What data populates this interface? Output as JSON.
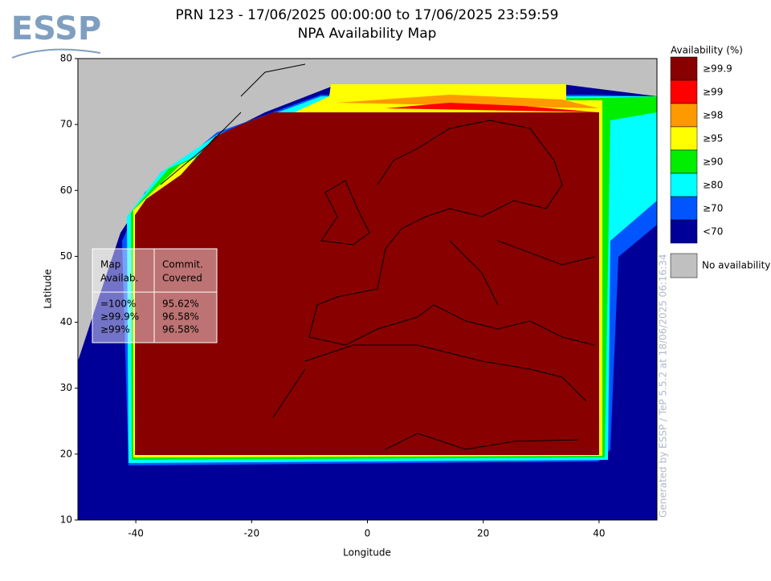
{
  "header": {
    "logo": "ESSP",
    "title": "PRN 123 - 17/06/2025 00:00:00 to 17/06/2025 23:59:59",
    "subtitle": "NPA Availability Map"
  },
  "chart_data": {
    "type": "map",
    "xlabel": "Longitude",
    "ylabel": "Latitude",
    "xlim": [
      -50,
      50
    ],
    "ylim": [
      10,
      80
    ],
    "xticks": [
      -40,
      -20,
      0,
      20,
      40
    ],
    "yticks": [
      10,
      20,
      30,
      40,
      50,
      60,
      70,
      80
    ],
    "legend": {
      "title": "Availability (%)",
      "entries": [
        {
          "label": "≥99.9",
          "color": "#880000"
        },
        {
          "label": "≥99",
          "color": "#ff0000"
        },
        {
          "label": "≥98",
          "color": "#ff9900"
        },
        {
          "label": "≥95",
          "color": "#ffff00"
        },
        {
          "label": "≥90",
          "color": "#00ee00"
        },
        {
          "label": "≥80",
          "color": "#00ffff"
        },
        {
          "label": "≥70",
          "color": "#0055ff"
        },
        {
          "label": "<70",
          "color": "#000099"
        }
      ],
      "no_data": {
        "label": "No availability",
        "color": "#c0c0c0"
      }
    },
    "table": {
      "columns": [
        [
          "Map",
          "Availab."
        ],
        [
          "Commit.",
          "Covered"
        ]
      ],
      "rows": [
        [
          "=100%",
          "95.62%"
        ],
        [
          "≥99.9%",
          "96.58%"
        ],
        [
          "≥99%",
          "96.58%"
        ]
      ]
    },
    "watermark": "Generated by ESSP / TeP 5.5.2 at 18/06/2025 06:16:34"
  }
}
